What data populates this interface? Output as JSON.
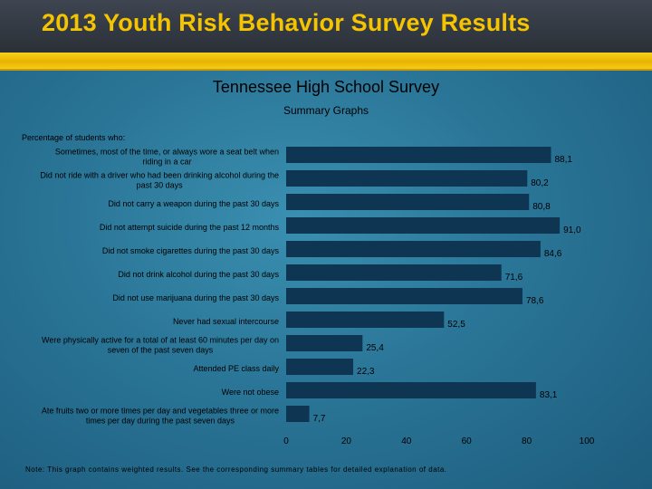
{
  "banner": {
    "title": "2013 Youth Risk Behavior Survey Results"
  },
  "header": {
    "title": "Tennessee High School Survey",
    "subtitle": "Summary Graphs"
  },
  "lead_text": "Percentage of students who:",
  "note": "Note: This graph contains weighted results. See the corresponding summary tables for detailed explanation of data.",
  "colors": {
    "bar": "#0e3653",
    "banner_text": "#f5c400",
    "stripe": "#f0c20a"
  },
  "chart_data": {
    "type": "bar",
    "orientation": "horizontal",
    "categories": [
      [
        "Sometimes, most of the time, or always wore a seat belt when",
        "riding in a car"
      ],
      [
        "Did not ride with a driver who had been drinking alcohol during the",
        "past 30 days"
      ],
      [
        "Did not carry a weapon during the past 30 days"
      ],
      [
        "Did not attempt suicide during the past 12 months"
      ],
      [
        "Did not smoke cigarettes during the past 30 days"
      ],
      [
        "Did not drink alcohol during the past 30 days"
      ],
      [
        "Did not use marijuana during the past 30 days"
      ],
      [
        "Never had sexual intercourse"
      ],
      [
        "Were physically active for a total of at least 60 minutes per day on",
        "seven of the past seven days"
      ],
      [
        "Attended PE class daily"
      ],
      [
        "Were not obese"
      ],
      [
        "Ate fruits two or more times per day and vegetables three or more",
        "times per day during the past seven days"
      ]
    ],
    "values": [
      88.1,
      80.2,
      80.8,
      91.0,
      84.6,
      71.6,
      78.6,
      52.5,
      25.4,
      22.3,
      83.1,
      7.7
    ],
    "value_labels": [
      "88,1",
      "80,2",
      "80,8",
      "91,0",
      "84,6",
      "71,6",
      "78,6",
      "52,5",
      "25,4",
      "22,3",
      "83,1",
      "7,7"
    ],
    "xlim": [
      0,
      100
    ],
    "xticks": [
      0,
      20,
      40,
      60,
      80,
      100
    ],
    "grid": false,
    "legend": "none"
  }
}
